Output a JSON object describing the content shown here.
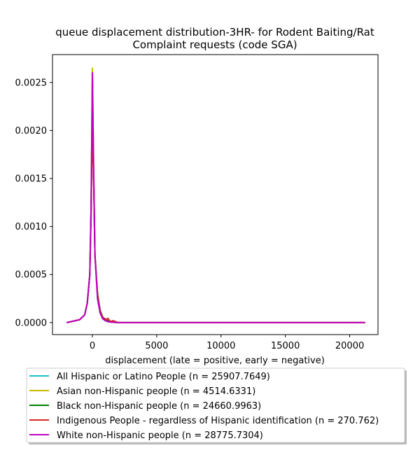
{
  "chart_data": {
    "type": "line",
    "title_lines": [
      "queue displacement distribution-3HR-  for Rodent Baiting/Rat",
      "Complaint  requests (code SGA)"
    ],
    "xlabel": "displacement (late = positive, early = negative)",
    "ylabel": "",
    "xlim": [
      -3100,
      22200
    ],
    "ylim": [
      -0.000125,
      0.00279
    ],
    "x_ticks": [
      0,
      5000,
      10000,
      15000,
      20000
    ],
    "x_tick_labels": [
      "0",
      "5000",
      "10000",
      "15000",
      "20000"
    ],
    "y_ticks": [
      0.0,
      0.0005,
      0.001,
      0.0015,
      0.002,
      0.0025
    ],
    "y_tick_labels": [
      "0.0000",
      "0.0005",
      "0.0010",
      "0.0015",
      "0.0020",
      "0.0025"
    ],
    "grid": false,
    "legend_placement": "below plot",
    "series": [
      {
        "name": "All Hispanic or Latino People (n = 25907.7649)",
        "color": "#17becf",
        "x": [
          -2000,
          -1000,
          -600,
          -400,
          -200,
          -100,
          0,
          100,
          200,
          400,
          600,
          800,
          1000,
          1200,
          1500,
          2000,
          5000,
          10000,
          15000,
          21200
        ],
        "y": [
          0.0,
          3e-05,
          8e-05,
          0.0002,
          0.0005,
          0.0012,
          0.0024,
          0.0015,
          0.0007,
          0.00025,
          0.0001,
          4e-05,
          2e-05,
          1e-05,
          4e-06,
          0.0,
          0.0,
          0.0,
          0.0,
          0.0
        ]
      },
      {
        "name": "Asian non-Hispanic people (n = 4514.6331)",
        "color": "#c9b800",
        "x": [
          -2000,
          -1000,
          -600,
          -400,
          -200,
          -100,
          0,
          100,
          200,
          400,
          600,
          800,
          1000,
          1200,
          1500,
          2000,
          5000,
          10000,
          15000,
          21200
        ],
        "y": [
          0.0,
          3e-05,
          8e-05,
          0.0002,
          0.0005,
          0.0012,
          0.00265,
          0.0016,
          0.0007,
          0.0003,
          0.00012,
          5e-05,
          3e-05,
          2e-05,
          8e-06,
          0.0,
          0.0,
          0.0,
          0.0,
          0.0
        ]
      },
      {
        "name": "Black non-Hispanic people (n = 24660.9963)",
        "color": "#008000",
        "x": [
          -2000,
          -1000,
          -600,
          -400,
          -200,
          -100,
          0,
          100,
          200,
          400,
          600,
          800,
          1000,
          1200,
          1500,
          2000,
          5000,
          10000,
          15000,
          21200
        ],
        "y": [
          0.0,
          3e-05,
          8e-05,
          0.0002,
          0.0005,
          0.0012,
          0.0022,
          0.0015,
          0.0007,
          0.0003,
          0.00013,
          6e-05,
          3e-05,
          2e-05,
          8e-06,
          0.0,
          0.0,
          0.0,
          0.0,
          0.0
        ]
      },
      {
        "name": "Indigenous People - regardless of Hispanic identification (n = 270.762)",
        "color": "#d62728",
        "x": [
          -2000,
          -1000,
          -600,
          -400,
          -200,
          -100,
          0,
          100,
          200,
          400,
          600,
          800,
          1000,
          1100,
          1200,
          1400,
          1600,
          2000,
          5000,
          10000,
          15000,
          21200
        ],
        "y": [
          0.0,
          3e-05,
          8e-05,
          0.0002,
          0.0005,
          0.0011,
          0.0021,
          0.0015,
          0.0007,
          0.0003,
          0.00012,
          5e-05,
          4e-05,
          3e-05,
          4.5e-05,
          1e-05,
          2e-05,
          0.0,
          0.0,
          0.0,
          0.0,
          0.0
        ]
      },
      {
        "name": "White non-Hispanic people (n = 28775.7304)",
        "color": "#bf00bf",
        "x": [
          -2000,
          -1000,
          -600,
          -400,
          -200,
          -100,
          0,
          100,
          200,
          400,
          600,
          800,
          1000,
          1200,
          1500,
          2000,
          5000,
          10000,
          15000,
          21200
        ],
        "y": [
          0.0,
          3e-05,
          8e-05,
          0.0002,
          0.0005,
          0.0012,
          0.0026,
          0.0016,
          0.0007,
          0.00025,
          0.0001,
          4e-05,
          2e-05,
          1e-05,
          4e-06,
          0.0,
          0.0,
          0.0,
          0.0,
          0.0
        ]
      }
    ]
  }
}
